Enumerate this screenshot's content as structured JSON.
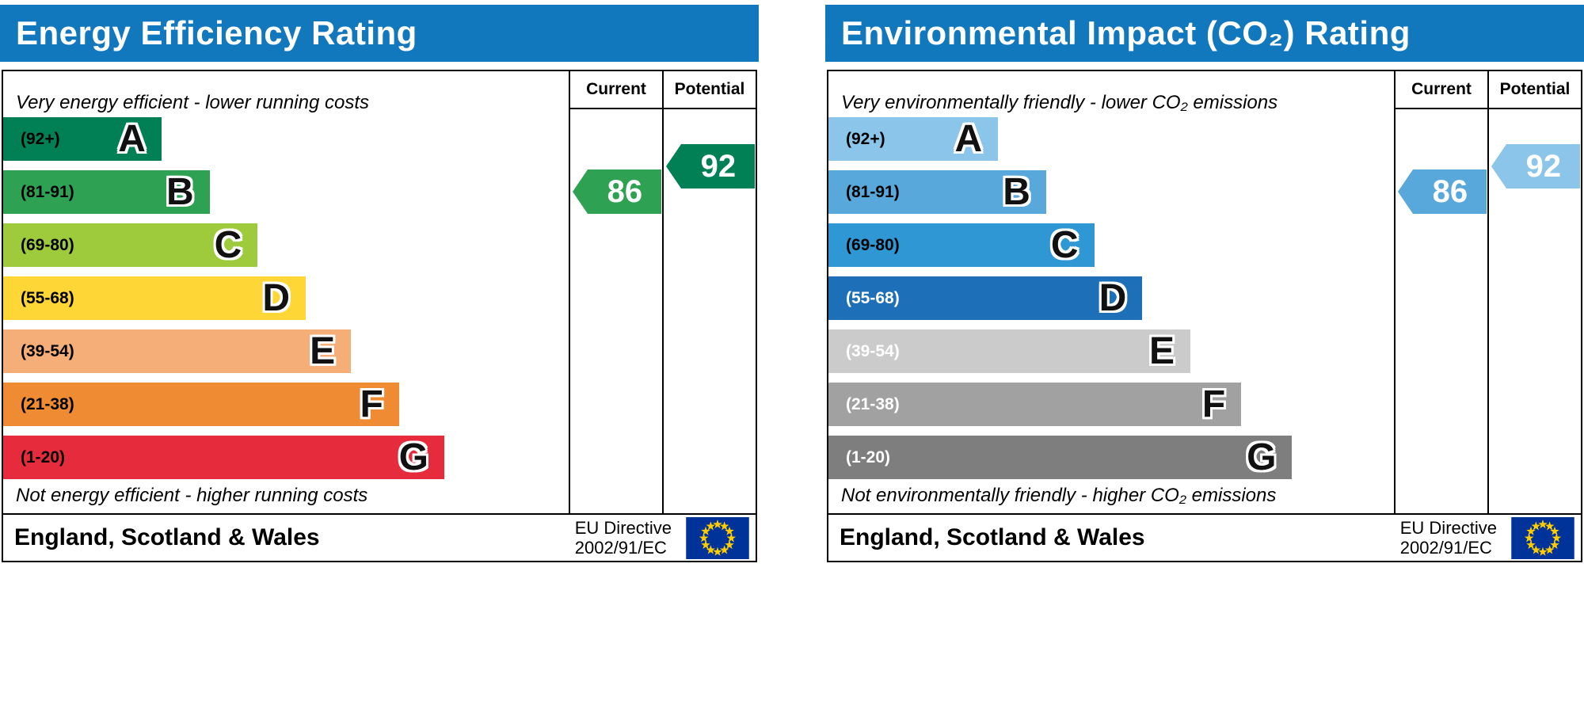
{
  "theme": {
    "header_bg": "#1278be",
    "header_text": "#ffffff",
    "border": "#000000",
    "eu_flag_bg": "#003399",
    "eu_flag_star": "#ffcc00"
  },
  "panels": [
    {
      "title": "Energy Efficiency Rating",
      "columns": {
        "current": "Current",
        "potential": "Potential"
      },
      "top_note": "Very energy efficient - lower running costs",
      "bottom_note": "Not energy efficient - higher running costs",
      "bands": [
        {
          "letter": "A",
          "range": "(92+)",
          "color": "#008054",
          "range_color": "#000000",
          "width_pct": 28
        },
        {
          "letter": "B",
          "range": "(81-91)",
          "color": "#2ea152",
          "range_color": "#000000",
          "width_pct": 36.5
        },
        {
          "letter": "C",
          "range": "(69-80)",
          "color": "#9dcb3c",
          "range_color": "#000000",
          "width_pct": 45
        },
        {
          "letter": "D",
          "range": "(55-68)",
          "color": "#fed636",
          "range_color": "#000000",
          "width_pct": 53.5
        },
        {
          "letter": "E",
          "range": "(39-54)",
          "color": "#f5ae77",
          "range_color": "#000000",
          "width_pct": 61.5
        },
        {
          "letter": "F",
          "range": "(21-38)",
          "color": "#ef8b33",
          "range_color": "#000000",
          "width_pct": 70
        },
        {
          "letter": "G",
          "range": "(1-20)",
          "color": "#e52b3c",
          "range_color": "#000000",
          "width_pct": 78
        }
      ],
      "current": {
        "value": "86",
        "band": "B",
        "color": "#2ea152"
      },
      "potential": {
        "value": "92",
        "band": "A",
        "color": "#008054"
      },
      "footer": {
        "region": "England, Scotland & Wales",
        "directive_line1": "EU Directive",
        "directive_line2": "2002/91/EC"
      }
    },
    {
      "title": "Environmental Impact (CO₂) Rating",
      "columns": {
        "current": "Current",
        "potential": "Potential"
      },
      "top_note": "Very environmentally friendly - lower CO₂ emissions",
      "bottom_note": "Not environmentally friendly - higher CO₂ emissions",
      "bands": [
        {
          "letter": "A",
          "range": "(92+)",
          "color": "#8cc5ea",
          "range_color": "#000000",
          "width_pct": 30
        },
        {
          "letter": "B",
          "range": "(81-91)",
          "color": "#58a8db",
          "range_color": "#000000",
          "width_pct": 38.5
        },
        {
          "letter": "C",
          "range": "(69-80)",
          "color": "#2f98d4",
          "range_color": "#000000",
          "width_pct": 47
        },
        {
          "letter": "D",
          "range": "(55-68)",
          "color": "#1d70b8",
          "range_color": "#ffffff",
          "width_pct": 55.5
        },
        {
          "letter": "E",
          "range": "(39-54)",
          "color": "#cbcbcb",
          "range_color": "#ffffff",
          "width_pct": 64
        },
        {
          "letter": "F",
          "range": "(21-38)",
          "color": "#a1a1a1",
          "range_color": "#ffffff",
          "width_pct": 73
        },
        {
          "letter": "G",
          "range": "(1-20)",
          "color": "#7e7e7e",
          "range_color": "#ffffff",
          "width_pct": 82
        }
      ],
      "current": {
        "value": "86",
        "band": "B",
        "color": "#58a8db"
      },
      "potential": {
        "value": "92",
        "band": "A",
        "color": "#8cc5ea"
      },
      "footer": {
        "region": "England, Scotland & Wales",
        "directive_line1": "EU Directive",
        "directive_line2": "2002/91/EC"
      }
    }
  ],
  "chart_data": [
    {
      "type": "bar",
      "title": "Energy Efficiency Rating",
      "categories": [
        "A",
        "B",
        "C",
        "D",
        "E",
        "F",
        "G"
      ],
      "band_ranges": [
        "92+",
        "81-91",
        "69-80",
        "55-68",
        "39-54",
        "21-38",
        "1-20"
      ],
      "series": [
        {
          "name": "Current",
          "value": 86,
          "band": "B"
        },
        {
          "name": "Potential",
          "value": 92,
          "band": "A"
        }
      ],
      "top_annotation": "Very energy efficient - lower running costs",
      "bottom_annotation": "Not energy efficient - higher running costs",
      "footer": "England, Scotland & Wales — EU Directive 2002/91/EC",
      "scale": [
        1,
        100
      ]
    },
    {
      "type": "bar",
      "title": "Environmental Impact (CO₂) Rating",
      "categories": [
        "A",
        "B",
        "C",
        "D",
        "E",
        "F",
        "G"
      ],
      "band_ranges": [
        "92+",
        "81-91",
        "69-80",
        "55-68",
        "39-54",
        "21-38",
        "1-20"
      ],
      "series": [
        {
          "name": "Current",
          "value": 86,
          "band": "B"
        },
        {
          "name": "Potential",
          "value": 92,
          "band": "A"
        }
      ],
      "top_annotation": "Very environmentally friendly - lower CO₂ emissions",
      "bottom_annotation": "Not environmentally friendly - higher CO₂ emissions",
      "footer": "England, Scotland & Wales — EU Directive 2002/91/EC",
      "scale": [
        1,
        100
      ]
    }
  ]
}
